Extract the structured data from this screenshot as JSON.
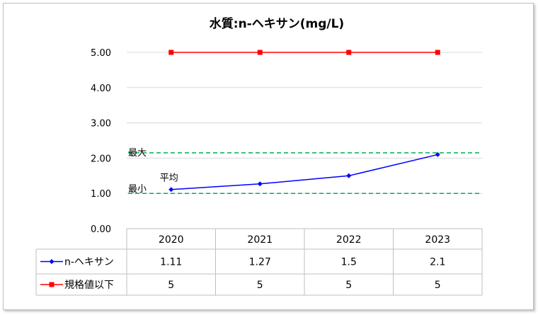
{
  "chart_data": {
    "type": "line",
    "title": "水質:n-ヘキサン(mg/L)",
    "categories": [
      "2020",
      "2021",
      "2022",
      "2023"
    ],
    "series": [
      {
        "name": "n-ヘキサン",
        "values": [
          1.11,
          1.27,
          1.5,
          2.1
        ],
        "color": "#0000ff",
        "marker": "diamond"
      },
      {
        "name": "規格値以下",
        "values": [
          5,
          5,
          5,
          5
        ],
        "color": "#ff0000",
        "marker": "square"
      }
    ],
    "table_values": [
      [
        "1.11",
        "1.27",
        "1.5",
        "2.1"
      ],
      [
        "5",
        "5",
        "5",
        "5"
      ]
    ],
    "ylim": [
      0,
      5
    ],
    "yticks": [
      "0.00",
      "1.00",
      "2.00",
      "3.00",
      "4.00",
      "5.00"
    ],
    "grid": true,
    "data_table": true,
    "reference_lines": [
      {
        "label": "最大",
        "value": 2.15,
        "color": "#00b050",
        "style": "dashed"
      },
      {
        "label": "最小",
        "value": 1.0,
        "color": "#00b050",
        "style": "dashed"
      }
    ],
    "annotations": [
      {
        "text": "平均",
        "category": "2020"
      }
    ]
  }
}
